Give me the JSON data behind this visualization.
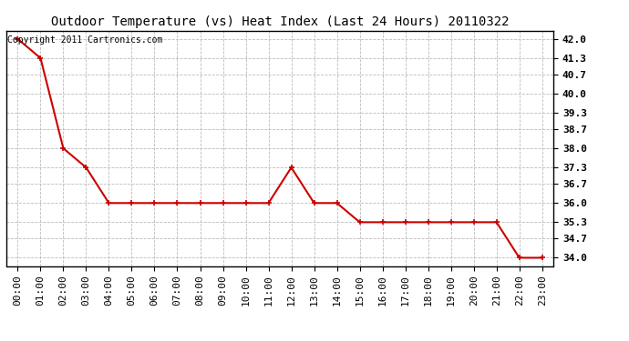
{
  "title": "Outdoor Temperature (vs) Heat Index (Last 24 Hours) 20110322",
  "copyright": "Copyright 2011 Cartronics.com",
  "x_labels": [
    "00:00",
    "01:00",
    "02:00",
    "03:00",
    "04:00",
    "05:00",
    "06:00",
    "07:00",
    "08:00",
    "09:00",
    "10:00",
    "11:00",
    "12:00",
    "13:00",
    "14:00",
    "15:00",
    "16:00",
    "17:00",
    "18:00",
    "19:00",
    "20:00",
    "21:00",
    "22:00",
    "23:00"
  ],
  "y_values": [
    42.0,
    41.3,
    38.0,
    37.3,
    36.0,
    36.0,
    36.0,
    36.0,
    36.0,
    36.0,
    36.0,
    36.0,
    37.3,
    36.0,
    36.0,
    35.3,
    35.3,
    35.3,
    35.3,
    35.3,
    35.3,
    35.3,
    34.0,
    34.0
  ],
  "y_ticks": [
    34.0,
    34.7,
    35.3,
    36.0,
    36.7,
    37.3,
    38.0,
    38.7,
    39.3,
    40.0,
    40.7,
    41.3,
    42.0
  ],
  "ylim": [
    33.7,
    42.3
  ],
  "line_color": "#cc0000",
  "marker": "+",
  "marker_size": 5,
  "marker_linewidth": 1.2,
  "line_width": 1.5,
  "background_color": "#ffffff",
  "grid_color": "#bbbbbb",
  "title_fontsize": 10,
  "copyright_fontsize": 7,
  "tick_fontsize": 8,
  "border_color": "#000000"
}
